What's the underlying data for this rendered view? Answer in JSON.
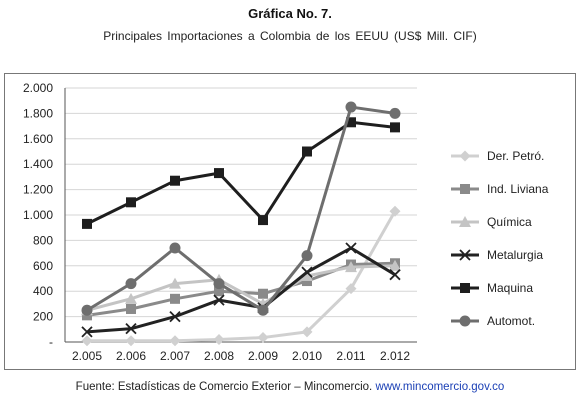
{
  "figure": {
    "title": "Gráfica No. 7.",
    "subtitle": "Principales Importaciones a Colombia de los EEUU (US$ Mill. CIF)",
    "source_text": "Fuente: Estadísticas de Comercio Exterior – Mincomercio.",
    "source_link": "www.mincomercio.gov.co"
  },
  "chart_data": {
    "type": "line",
    "title": "",
    "xlabel": "",
    "ylabel": "",
    "x": [
      "2.005",
      "2.006",
      "2.007",
      "2.008",
      "2.009",
      "2.010",
      "2.011",
      "2.012"
    ],
    "ylim": [
      0,
      2000
    ],
    "yticks": [
      0,
      200,
      400,
      600,
      800,
      1000,
      1200,
      1400,
      1600,
      1800,
      2000
    ],
    "ytick_labels": [
      "-",
      "200",
      "400",
      "600",
      "800",
      "1.000",
      "1.200",
      "1.400",
      "1.600",
      "1.800",
      "2.000"
    ],
    "grid": true,
    "legend_position": "right",
    "series": [
      {
        "name": "Der. Petró.",
        "marker": "diamond",
        "color": "#d0d0d0",
        "values": [
          10,
          10,
          10,
          20,
          35,
          80,
          420,
          1030
        ]
      },
      {
        "name": "Ind. Liviana",
        "marker": "square",
        "color": "#8a8a8a",
        "values": [
          210,
          260,
          340,
          400,
          380,
          480,
          610,
          620
        ]
      },
      {
        "name": "Química",
        "marker": "triangle",
        "color": "#c4c4c4",
        "values": [
          250,
          340,
          460,
          490,
          300,
          520,
          590,
          600
        ]
      },
      {
        "name": "Metalurgia",
        "marker": "x",
        "color": "#222222",
        "values": [
          80,
          105,
          200,
          330,
          270,
          550,
          740,
          530
        ]
      },
      {
        "name": "Maquina",
        "marker": "square",
        "color": "#1e1e1e",
        "values": [
          930,
          1100,
          1270,
          1330,
          960,
          1500,
          1730,
          1690
        ]
      },
      {
        "name": "Automot.",
        "marker": "circle",
        "color": "#6e6e6e",
        "values": [
          250,
          460,
          740,
          460,
          250,
          680,
          1850,
          1800
        ]
      }
    ]
  }
}
